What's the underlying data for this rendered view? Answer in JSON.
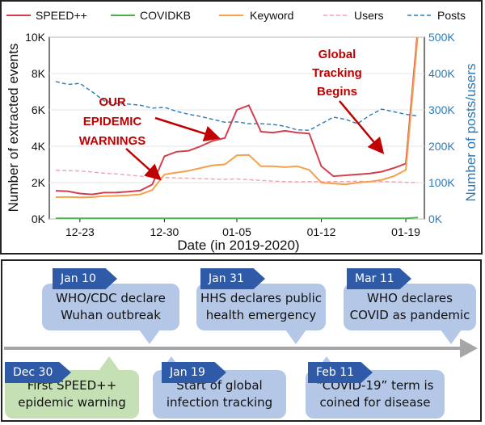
{
  "chart_data": {
    "type": "line",
    "x_label": "Date (in 2019-2020)",
    "y_label_left": "Number of extracted events",
    "y_label_right": "Number of posts/users",
    "x_ticks": [
      "12-23",
      "12-30",
      "01-05",
      "01-12",
      "01-19"
    ],
    "y_ticks_left": [
      "0K",
      "2K",
      "4K",
      "6K",
      "8K",
      "10K"
    ],
    "y_ticks_right": [
      "0K",
      "100K",
      "200K",
      "300K",
      "400K",
      "500K"
    ],
    "y_range_left": [
      0,
      10000
    ],
    "y_range_right": [
      0,
      500000
    ],
    "x_dates": [
      "12-21",
      "12-22",
      "12-23",
      "12-24",
      "12-25",
      "12-26",
      "12-27",
      "12-28",
      "12-29",
      "12-30",
      "12-31",
      "01-01",
      "01-02",
      "01-03",
      "01-04",
      "01-05",
      "01-06",
      "01-07",
      "01-08",
      "01-09",
      "01-10",
      "01-11",
      "01-12",
      "01-13",
      "01-14",
      "01-15",
      "01-16",
      "01-17",
      "01-18",
      "01-19",
      "01-20"
    ],
    "series": [
      {
        "name": "SPEED++",
        "axis": "left",
        "color": "#d43f4f",
        "style": "solid",
        "values": [
          1550,
          1520,
          1400,
          1350,
          1450,
          1460,
          1500,
          1560,
          1900,
          3450,
          3700,
          3750,
          4000,
          4300,
          4450,
          6000,
          6250,
          4800,
          4750,
          4850,
          4750,
          4700,
          2900,
          2350,
          2400,
          2450,
          2500,
          2600,
          2800,
          3050,
          10500
        ]
      },
      {
        "name": "COVIDKB",
        "axis": "left",
        "color": "#4daf4a",
        "style": "solid",
        "values": [
          30,
          30,
          30,
          30,
          30,
          30,
          30,
          30,
          30,
          30,
          30,
          30,
          30,
          30,
          30,
          30,
          30,
          30,
          30,
          30,
          30,
          30,
          30,
          30,
          30,
          30,
          30,
          30,
          30,
          30,
          80
        ]
      },
      {
        "name": "Keyword",
        "axis": "left",
        "color": "#f5a04a",
        "style": "solid",
        "values": [
          1200,
          1210,
          1190,
          1200,
          1260,
          1270,
          1300,
          1350,
          1600,
          2450,
          2550,
          2650,
          2800,
          2950,
          3000,
          3500,
          3520,
          2900,
          2900,
          2850,
          2900,
          2700,
          2000,
          1950,
          1900,
          2000,
          2050,
          2150,
          2350,
          2700,
          10200
        ]
      },
      {
        "name": "Users",
        "axis": "right",
        "color": "#f2a1ad",
        "style": "dashed",
        "values": [
          134000,
          133000,
          132000,
          129000,
          126000,
          124000,
          121000,
          118000,
          116000,
          114000,
          113000,
          112000,
          111000,
          110000,
          109000,
          110000,
          108000,
          106000,
          104000,
          103000,
          102000,
          103000,
          102000,
          103000,
          103000,
          104000,
          103000,
          103000,
          102000,
          101000,
          100000
        ]
      },
      {
        "name": "Posts",
        "axis": "right",
        "color": "#2b7bb9",
        "style": "dashed",
        "values": [
          378000,
          370000,
          373000,
          350000,
          325000,
          317000,
          316000,
          313000,
          305000,
          307000,
          296000,
          288000,
          282000,
          274000,
          266000,
          267000,
          262000,
          262000,
          260000,
          255000,
          245000,
          244000,
          262000,
          280000,
          274000,
          262000,
          285000,
          302000,
          295000,
          288000,
          283000
        ]
      }
    ],
    "annotations": [
      {
        "label": "OUR EPIDEMIC WARNINGS",
        "color": "#c00000"
      },
      {
        "label": "Global Tracking Begins",
        "color": "#c00000"
      }
    ],
    "legend_position": "top"
  },
  "legend": {
    "items": [
      {
        "label": "SPEED++",
        "color": "#d43f4f",
        "dashed": false
      },
      {
        "label": "COVIDKB",
        "color": "#4daf4a",
        "dashed": false
      },
      {
        "label": "Keyword",
        "color": "#f5a04a",
        "dashed": false
      },
      {
        "label": "Users",
        "color": "#f2a1ad",
        "dashed": true
      },
      {
        "label": "Posts",
        "color": "#2b7bb9",
        "dashed": true
      }
    ]
  },
  "annotation_text": {
    "warn_lines": [
      "OUR",
      "EPIDEMIC",
      "WARNINGS"
    ],
    "global_lines": [
      "Global",
      "Tracking",
      "Begins"
    ]
  },
  "timeline": {
    "events": [
      {
        "date": "Jan 10",
        "line1": "WHO/CDC declare",
        "line2": "Wuhan outbreak",
        "color": "blue"
      },
      {
        "date": "Jan 31",
        "line1": "HHS declares public",
        "line2": "health emergency",
        "color": "blue"
      },
      {
        "date": "Mar 11",
        "line1": "WHO declares",
        "line2": "COVID as pandemic",
        "color": "blue"
      },
      {
        "date": "Dec 30",
        "line1": "First SPEED++",
        "line2": "epidemic warning",
        "color": "green"
      },
      {
        "date": "Jan 19",
        "line1": "Start of global",
        "line2": "infection tracking",
        "color": "blue"
      },
      {
        "date": "Feb 11",
        "line1": "“COVID-19” term is",
        "line2": "coined for disease",
        "color": "blue"
      }
    ]
  },
  "colors": {
    "right_axis": "#2b7bb9",
    "annotation": "#c00000",
    "tag": "#2e5aa8",
    "card_blue": "#b4c7e7",
    "card_green": "#c5e0b4",
    "arrow": "#a6a6a6"
  }
}
